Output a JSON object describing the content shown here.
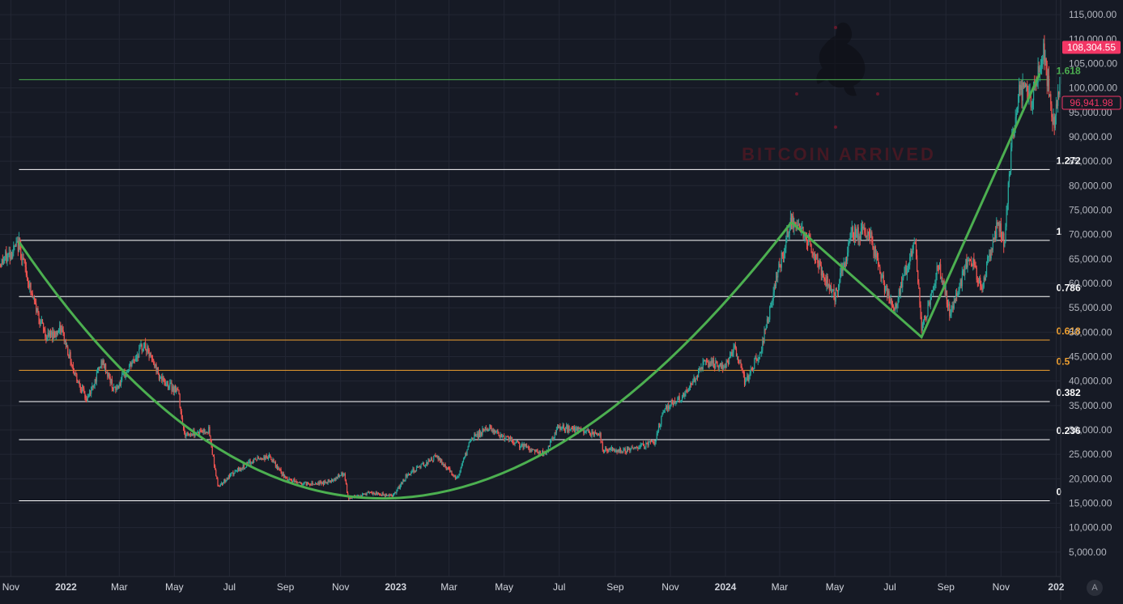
{
  "chart_data": {
    "type": "candlestick",
    "x_ticks": [
      "Nov",
      "2022",
      "Mar",
      "May",
      "Jul",
      "Sep",
      "Nov",
      "2023",
      "Mar",
      "May",
      "Jul",
      "Sep",
      "Nov",
      "2024",
      "Mar",
      "May",
      "Jul",
      "Sep",
      "Nov",
      "202"
    ],
    "x_tick_dates": [
      "2021-11-01",
      "2022-01-01",
      "2022-03-01",
      "2022-05-01",
      "2022-07-01",
      "2022-09-01",
      "2022-11-01",
      "2023-01-01",
      "2023-03-01",
      "2023-05-01",
      "2023-07-01",
      "2023-09-01",
      "2023-11-01",
      "2024-01-01",
      "2024-03-01",
      "2024-05-01",
      "2024-07-01",
      "2024-09-01",
      "2024-11-01",
      "2025-01-01"
    ],
    "x_tick_year": [
      false,
      true,
      false,
      false,
      false,
      false,
      false,
      true,
      false,
      false,
      false,
      false,
      false,
      true,
      false,
      false,
      false,
      false,
      false,
      true
    ],
    "y_ticks": [
      "115,000.00",
      "110,000.00",
      "105,000.00",
      "100,000.00",
      "95,000.00",
      "90,000.00",
      "85,000.00",
      "80,000.00",
      "75,000.00",
      "70,000.00",
      "65,000.00",
      "60,000.00",
      "55,000.00",
      "50,000.00",
      "45,000.00",
      "40,000.00",
      "35,000.00",
      "30,000.00",
      "25,000.00",
      "20,000.00",
      "15,000.00",
      "10,000.00",
      "5,000.00"
    ],
    "ylim": [
      0,
      118000
    ],
    "xlim": [
      "2021-10-20",
      "2025-01-06"
    ],
    "price_points": [
      [
        "2021-10-20",
        64000
      ],
      [
        "2021-11-10",
        68000
      ],
      [
        "2021-11-25",
        57000
      ],
      [
        "2021-12-10",
        49000
      ],
      [
        "2021-12-27",
        50500
      ],
      [
        "2022-01-10",
        42000
      ],
      [
        "2022-01-24",
        36000
      ],
      [
        "2022-02-10",
        44000
      ],
      [
        "2022-02-24",
        38000
      ],
      [
        "2022-03-28",
        47500
      ],
      [
        "2022-04-18",
        40000
      ],
      [
        "2022-05-05",
        38000
      ],
      [
        "2022-05-12",
        29000
      ],
      [
        "2022-06-08",
        30000
      ],
      [
        "2022-06-18",
        18500
      ],
      [
        "2022-07-08",
        21500
      ],
      [
        "2022-07-30",
        24000
      ],
      [
        "2022-08-14",
        24500
      ],
      [
        "2022-09-01",
        20000
      ],
      [
        "2022-09-20",
        19000
      ],
      [
        "2022-10-15",
        19200
      ],
      [
        "2022-11-05",
        21000
      ],
      [
        "2022-11-09",
        16000
      ],
      [
        "2022-12-01",
        17000
      ],
      [
        "2022-12-30",
        16600
      ],
      [
        "2023-01-14",
        21000
      ],
      [
        "2023-02-15",
        24500
      ],
      [
        "2023-03-10",
        20000
      ],
      [
        "2023-03-25",
        28000
      ],
      [
        "2023-04-14",
        30500
      ],
      [
        "2023-05-10",
        27500
      ],
      [
        "2023-06-15",
        25000
      ],
      [
        "2023-06-30",
        30500
      ],
      [
        "2023-07-20",
        30000
      ],
      [
        "2023-08-15",
        29000
      ],
      [
        "2023-08-18",
        26000
      ],
      [
        "2023-09-10",
        25800
      ],
      [
        "2023-10-15",
        27500
      ],
      [
        "2023-10-25",
        34500
      ],
      [
        "2023-11-20",
        37500
      ],
      [
        "2023-12-08",
        44000
      ],
      [
        "2023-12-31",
        42500
      ],
      [
        "2024-01-11",
        46500
      ],
      [
        "2024-01-23",
        39500
      ],
      [
        "2024-02-10",
        47000
      ],
      [
        "2024-02-28",
        62000
      ],
      [
        "2024-03-14",
        73000
      ],
      [
        "2024-04-01",
        69000
      ],
      [
        "2024-04-17",
        62000
      ],
      [
        "2024-05-01",
        57500
      ],
      [
        "2024-05-20",
        70000
      ],
      [
        "2024-06-07",
        71000
      ],
      [
        "2024-06-24",
        60000
      ],
      [
        "2024-07-05",
        54000
      ],
      [
        "2024-07-29",
        69500
      ],
      [
        "2024-08-05",
        50000
      ],
      [
        "2024-08-24",
        64000
      ],
      [
        "2024-09-06",
        53500
      ],
      [
        "2024-09-27",
        66000
      ],
      [
        "2024-10-10",
        59000
      ],
      [
        "2024-10-29",
        72500
      ],
      [
        "2024-11-05",
        68000
      ],
      [
        "2024-11-13",
        90000
      ],
      [
        "2024-11-22",
        99500
      ],
      [
        "2024-12-05",
        98000
      ],
      [
        "2024-12-17",
        108000
      ],
      [
        "2024-12-30",
        92000
      ],
      [
        "2025-01-06",
        102000
      ]
    ],
    "fib_levels": [
      {
        "label": "0",
        "value": 15500,
        "color": "#ffffff"
      },
      {
        "label": "0.236",
        "value": 28000,
        "color": "#ffffff"
      },
      {
        "label": "0.382",
        "value": 35800,
        "color": "#ffffff"
      },
      {
        "label": "0.5",
        "value": 42200,
        "color": "#f0a030"
      },
      {
        "label": "0.618",
        "value": 48400,
        "color": "#f0a030"
      },
      {
        "label": "0.786",
        "value": 57300,
        "color": "#ffffff"
      },
      {
        "label": "1",
        "value": 68800,
        "color": "#ffffff"
      },
      {
        "label": "1.272",
        "value": 83300,
        "color": "#ffffff"
      },
      {
        "label": "1.618",
        "value": 101700,
        "color": "#4caf50"
      }
    ],
    "fib_start_date": "2021-11-10",
    "fib_end_date": "2024-12-25",
    "cup_curve": [
      [
        "2021-11-10",
        68500
      ],
      [
        "2022-12-25",
        16000
      ],
      [
        "2024-03-14",
        72500
      ]
    ],
    "handle_lines": [
      [
        "2024-03-14",
        72500
      ],
      [
        "2024-08-05",
        49000
      ],
      [
        "2024-12-14",
        103000
      ]
    ],
    "price_tags": [
      {
        "value": "108,304.55",
        "at": 108304.55,
        "style": "filled",
        "color": "#f23665"
      },
      {
        "value": "96,941.98",
        "at": 96941.98,
        "style": "outline",
        "color": "#f23665"
      }
    ],
    "watermark_text": "BITCOIN ARRIVED",
    "colors": {
      "background": "#161a25",
      "up": "#26a69a",
      "down": "#ef5350",
      "curve": "#4caf50"
    }
  },
  "controls": {
    "auto_scale_label": "A"
  }
}
